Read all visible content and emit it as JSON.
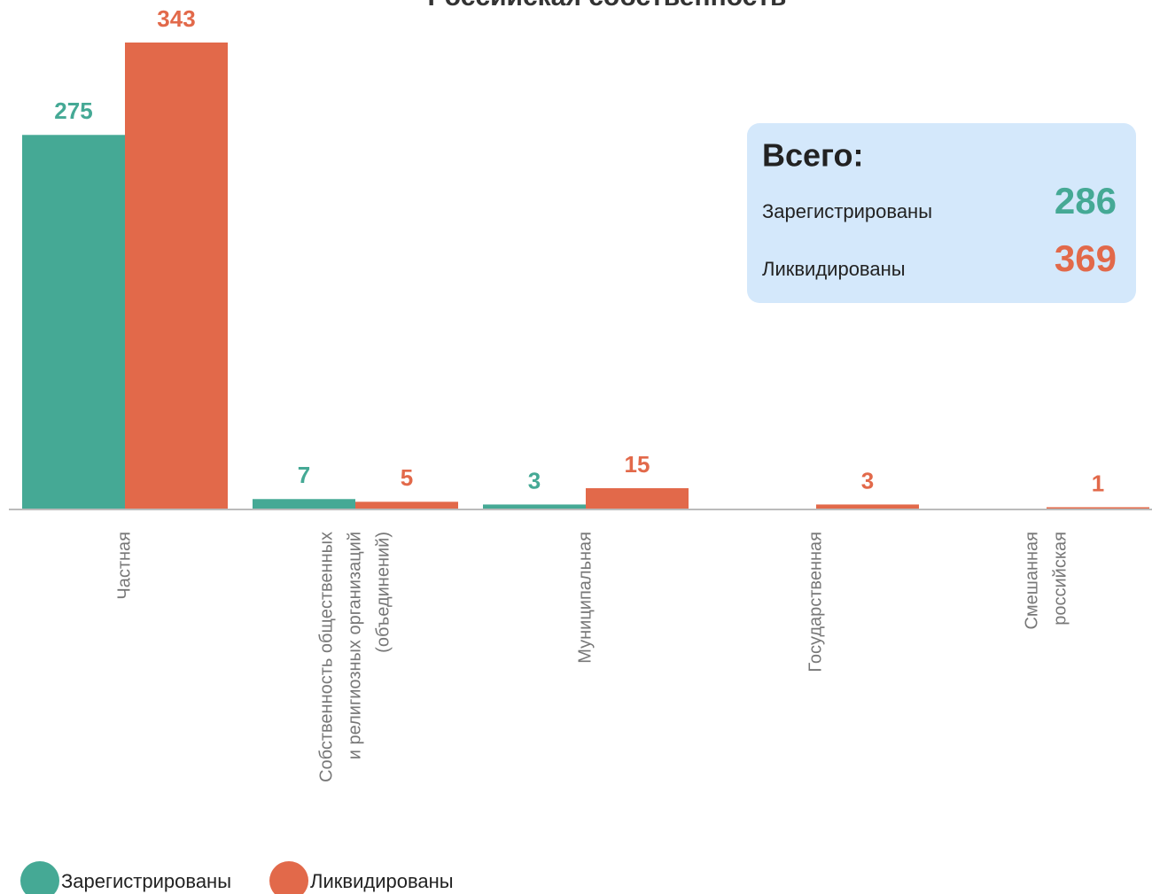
{
  "chart_data": {
    "type": "bar",
    "title": "Российская собственность",
    "categories": [
      [
        "Частная"
      ],
      [
        "Собственность общественных",
        "и религиозных организаций",
        "(объединений)"
      ],
      [
        "Муниципальная"
      ],
      [
        "Государственная"
      ],
      [
        "Смешанная",
        "российская"
      ]
    ],
    "series": [
      {
        "name": "Зарегистрированы",
        "color": "#45a995",
        "values": [
          275,
          7,
          3,
          null,
          null
        ]
      },
      {
        "name": "Ликвидированы",
        "color": "#e2694a",
        "values": [
          343,
          5,
          15,
          3,
          1
        ]
      }
    ],
    "legend": "bottom-left",
    "summary": {
      "title": "Всего:",
      "items": [
        {
          "name": "Зарегистрированы",
          "value": 286,
          "color": "#45a995"
        },
        {
          "name": "Ликвидированы",
          "value": 369,
          "color": "#e2694a"
        }
      ]
    }
  }
}
